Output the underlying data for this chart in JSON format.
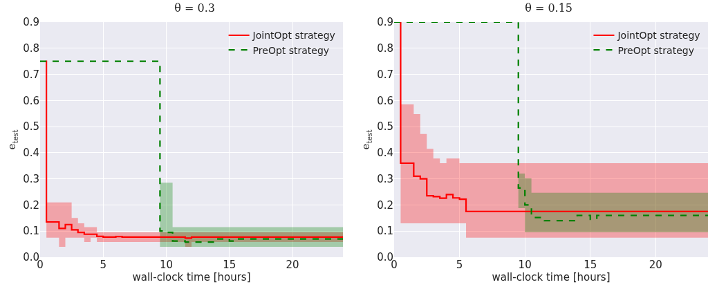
{
  "chart_data": [
    {
      "type": "step",
      "title": "θ = 0.3",
      "xlabel": "wall-clock time [hours]",
      "ylabel": "e$_{test}$",
      "xlim": [
        0,
        24
      ],
      "xticks": [
        0,
        5,
        10,
        15,
        20
      ],
      "ylim": [
        0,
        0.9
      ],
      "yticks": [
        {
          "value": 0,
          "label": "0.0"
        },
        0.1,
        0.2,
        0.3,
        0.4,
        0.5,
        0.6,
        0.7,
        0.8,
        0.9
      ],
      "grid": true,
      "legend": "top right",
      "series": [
        {
          "name": "JointOpt strategy",
          "color": "#ff0000",
          "line_style": "solid",
          "x": [
            0.45,
            0.5,
            1.5,
            2.0,
            2.5,
            3.0,
            3.5,
            4.0,
            4.5,
            5,
            6,
            6.5,
            11.5,
            12,
            24
          ],
          "values": [
            0.75,
            0.135,
            0.11,
            0.125,
            0.105,
            0.095,
            0.088,
            0.088,
            0.08,
            0.077,
            0.079,
            0.077,
            0.073,
            0.077,
            0.077
          ],
          "upper": [
            null,
            0.21,
            0.21,
            0.21,
            0.15,
            0.13,
            0.115,
            0.115,
            0.095,
            0.095,
            0.095,
            0.095,
            0.095,
            0.095,
            0.095
          ],
          "lower": [
            null,
            0.075,
            0.04,
            0.075,
            0.075,
            0.075,
            0.058,
            0.075,
            0.058,
            0.058,
            0.058,
            0.058,
            0.04,
            0.058,
            0.058
          ]
        },
        {
          "name": "PreOpt strategy",
          "color": "#008000",
          "line_style": "dashed",
          "x": [
            0,
            9.5,
            10,
            10.5,
            11.5,
            12,
            14,
            15,
            15.5,
            24
          ],
          "values": [
            0.75,
            0.1,
            0.095,
            0.062,
            0.058,
            0.058,
            0.07,
            0.062,
            0.07,
            0.07
          ],
          "upper": [
            null,
            0.285,
            0.285,
            0.115,
            0.115,
            0.115,
            0.115,
            0.115,
            0.115,
            0.115
          ],
          "lower": [
            null,
            0.04,
            0.04,
            0.04,
            0.04,
            0.04,
            0.04,
            0.04,
            0.04,
            0.04
          ]
        }
      ]
    },
    {
      "type": "step",
      "title": "θ = 0.15",
      "xlabel": "wall-clock time [hours]",
      "ylabel": "e$_{test}$",
      "xlim": [
        0,
        24
      ],
      "xticks": [
        0,
        5,
        10,
        15,
        20
      ],
      "ylim": [
        0,
        0.9
      ],
      "yticks": [
        {
          "value": 0,
          "label": "0.0"
        },
        0.1,
        0.2,
        0.3,
        0.4,
        0.5,
        0.6,
        0.7,
        0.8,
        0.9
      ],
      "grid": true,
      "legend": "top right",
      "series": [
        {
          "name": "JointOpt strategy",
          "color": "#ff0000",
          "line_style": "solid",
          "x": [
            0.45,
            0.5,
            1.5,
            2.0,
            2.5,
            3.0,
            3.5,
            4.0,
            4.5,
            5.0,
            5.5,
            24
          ],
          "values": [
            0.9,
            0.36,
            0.31,
            0.3,
            0.235,
            0.232,
            0.226,
            0.24,
            0.227,
            0.222,
            0.175,
            0.175
          ],
          "upper": [
            null,
            0.585,
            0.548,
            0.472,
            0.415,
            0.378,
            0.36,
            0.378,
            0.378,
            0.36,
            0.36,
            0.36
          ],
          "lower": [
            null,
            0.13,
            0.13,
            0.13,
            0.13,
            0.13,
            0.13,
            0.13,
            0.13,
            0.13,
            0.075,
            0.075
          ]
        },
        {
          "name": "PreOpt strategy",
          "color": "#008000",
          "line_style": "dashed",
          "x": [
            0,
            9.5,
            10,
            10.5,
            11.5,
            14,
            15,
            15.5,
            24
          ],
          "values": [
            0.9,
            0.265,
            0.2,
            0.152,
            0.14,
            0.16,
            0.145,
            0.16,
            0.16
          ],
          "upper": [
            null,
            0.32,
            0.302,
            0.247,
            0.247,
            0.247,
            0.247,
            0.247,
            0.247
          ],
          "lower": [
            null,
            0.188,
            0.095,
            0.095,
            0.095,
            0.095,
            0.095,
            0.095,
            0.095
          ]
        }
      ]
    }
  ]
}
